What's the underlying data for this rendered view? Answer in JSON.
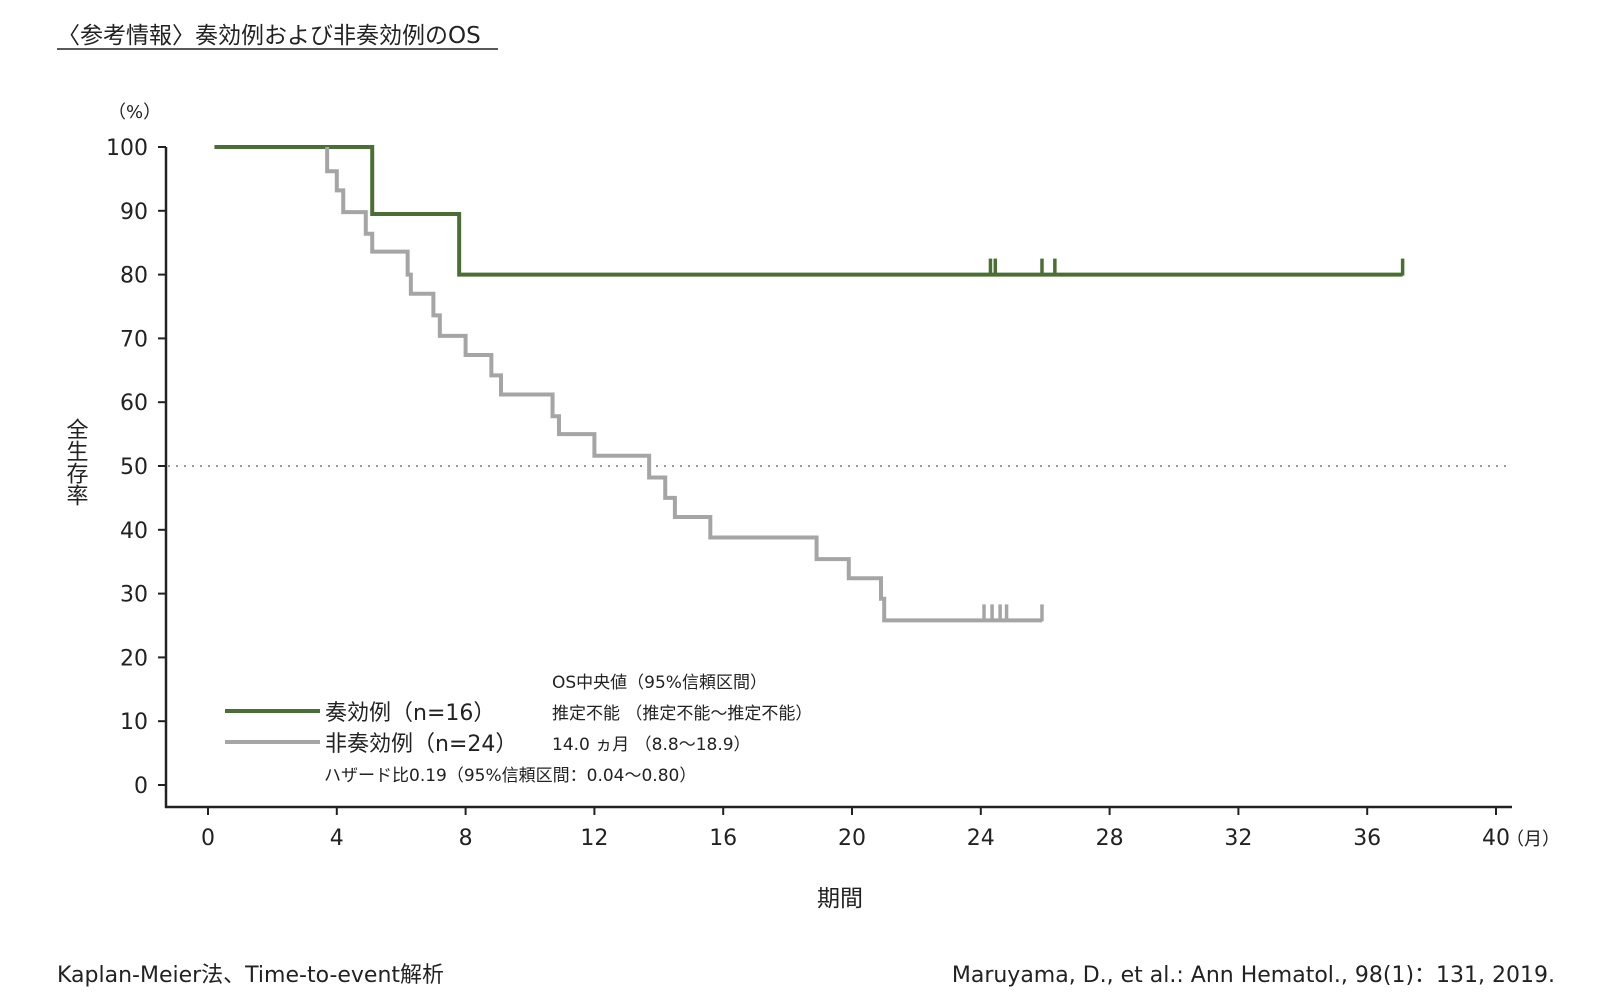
{
  "header": {
    "title": "〈参考情報〉奏効例および非奏効例のOS"
  },
  "footer": {
    "method": "Kaplan-Meier法、Time-to-event解析",
    "citation": "Maruyama, D., et al.: Ann Hematol., 98(1)：131, 2019."
  },
  "annotations": {
    "median_header": "OS中央値（95%信頼区間）",
    "median_responders": "推定不能 （推定不能〜推定不能）",
    "median_nonresponders": "14.0 ヵ月 （8.8〜18.9）",
    "hazard_ratio": "ハザード比0.19（95%信頼区間：0.04〜0.80）"
  },
  "chart_data": {
    "type": "line",
    "subtype": "kaplan-meier",
    "title": "",
    "xlabel": "期間",
    "ylabel": "全生存率",
    "x_unit": "（月）",
    "y_unit": "（%）",
    "xlim": [
      0,
      40
    ],
    "ylim": [
      0,
      100
    ],
    "xticks": [
      "0",
      "4",
      "8",
      "12",
      "16",
      "20",
      "24",
      "28",
      "32",
      "36",
      "40"
    ],
    "yticks": [
      "0",
      "10",
      "20",
      "30",
      "40",
      "50",
      "60",
      "70",
      "80",
      "90",
      "100"
    ],
    "reference_line": {
      "y": 50,
      "style": "dotted"
    },
    "grid": false,
    "legend_position": "bottom-left",
    "series": [
      {
        "name": "奏効例（n=16）",
        "color": "#4a6f35",
        "steps": [
          [
            0.2,
            100
          ],
          [
            5.1,
            89.5
          ],
          [
            7.8,
            80
          ],
          [
            37.1,
            80
          ]
        ],
        "censored_x": [
          24.3,
          24.45,
          25.9,
          26.3,
          37.1
        ]
      },
      {
        "name": "非奏効例（n=24）",
        "color": "#a5a5a5",
        "steps": [
          [
            3.7,
            100
          ],
          [
            3.7,
            96.2
          ],
          [
            4.0,
            93.2
          ],
          [
            4.2,
            89.8
          ],
          [
            4.9,
            86.4
          ],
          [
            5.1,
            83.6
          ],
          [
            6.2,
            80.0
          ],
          [
            6.3,
            77.0
          ],
          [
            7.0,
            73.6
          ],
          [
            7.2,
            70.4
          ],
          [
            8.0,
            67.4
          ],
          [
            8.8,
            64.2
          ],
          [
            9.1,
            61.2
          ],
          [
            10.7,
            57.8
          ],
          [
            10.9,
            55.0
          ],
          [
            12.0,
            51.6
          ],
          [
            13.7,
            48.2
          ],
          [
            14.2,
            45.0
          ],
          [
            14.5,
            42.0
          ],
          [
            15.6,
            38.8
          ],
          [
            18.9,
            35.4
          ],
          [
            19.9,
            32.4
          ],
          [
            20.9,
            29.2
          ],
          [
            21.0,
            25.8
          ],
          [
            25.9,
            25.8
          ]
        ],
        "censored_x": [
          24.1,
          24.35,
          24.6,
          24.8,
          25.9
        ]
      }
    ]
  }
}
